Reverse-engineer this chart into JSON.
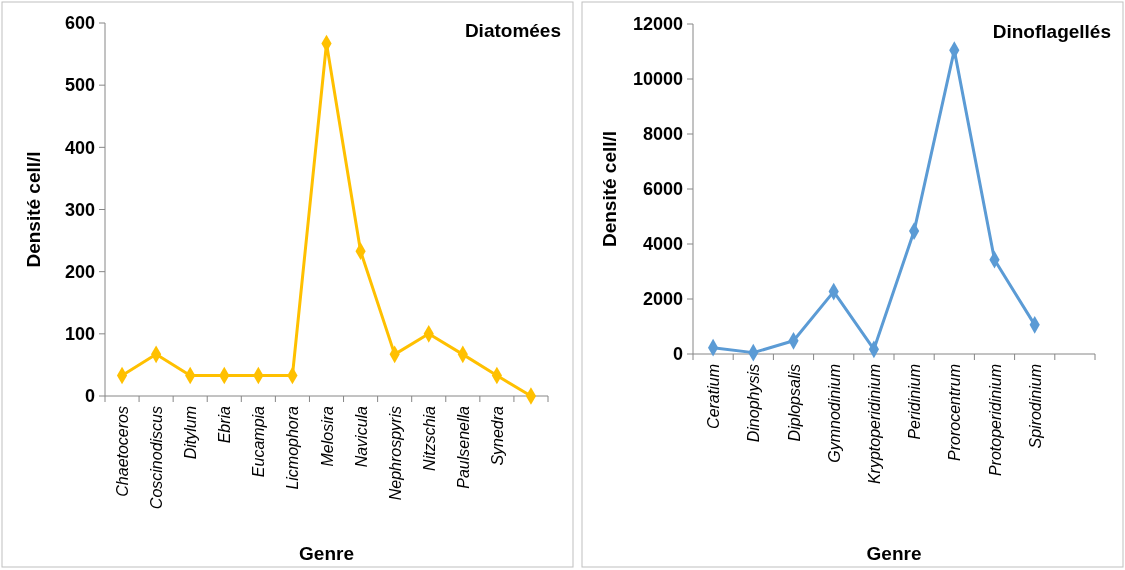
{
  "chart_data": [
    {
      "type": "line",
      "title": "Diatomées",
      "xlabel": "Genre",
      "ylabel": "Densité cell/l",
      "categories": [
        "Chaetoceros",
        "Coscinodiscus",
        "Ditylum",
        "Ebria",
        "Eucampia",
        "Licmophora",
        "Melosira",
        "Navicula",
        "Nephrospyris",
        "Nitzschia",
        "Paulsenella",
        "Synedra",
        null
      ],
      "series": [
        {
          "color": "#ffc000",
          "values": [
            33,
            67,
            33,
            33,
            33,
            33,
            567,
            233,
            67,
            100,
            67,
            33,
            0
          ]
        }
      ],
      "ylim": [
        0,
        600
      ],
      "yticks": [
        0,
        100,
        200,
        300,
        400,
        500,
        600
      ],
      "grid": false,
      "marker": "diamond",
      "line_style": "solid"
    },
    {
      "type": "line",
      "title": "Dinoflagellés",
      "xlabel": "Genre",
      "ylabel": "Densité cell/l",
      "categories": [
        "Ceratium",
        "Dinophysis",
        "Diplopsalis",
        "Gymnodinium",
        "Kryptoperidinium",
        "Peridinium",
        "Prorocentrum",
        "Protoperidinium",
        "Spirodinium",
        null
      ],
      "series": [
        {
          "color": "#5b9bd5",
          "values": [
            230,
            50,
            480,
            2270,
            170,
            4470,
            11050,
            3430,
            1060,
            null
          ]
        }
      ],
      "ylim": [
        0,
        12000
      ],
      "yticks": [
        0,
        2000,
        4000,
        6000,
        8000,
        10000,
        12000
      ],
      "grid": false,
      "marker": "diamond",
      "line_style": "solid"
    }
  ]
}
